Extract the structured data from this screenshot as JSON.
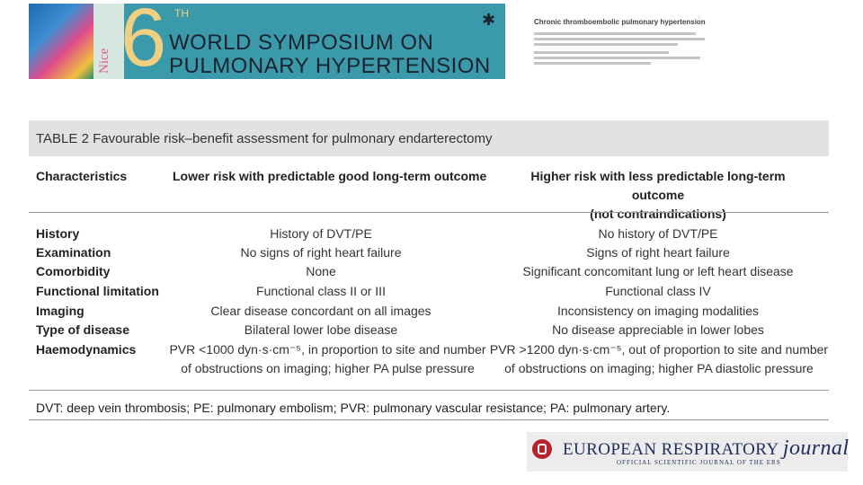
{
  "banner": {
    "edition": "6",
    "edition_suffix": "TH",
    "line1": "WORLD SYMPOSIUM ON",
    "line2": "PULMONARY HYPERTENSION",
    "city": "Nice"
  },
  "paper": {
    "title": "Chronic thromboembolic pulmonary hypertension"
  },
  "table": {
    "caption": "TABLE 2 Favourable risk–benefit assessment for pulmonary endarterectomy",
    "headers": {
      "characteristics": "Characteristics",
      "lower": "Lower risk with predictable good long-term outcome",
      "higher_line1": "Higher risk with less predictable long-term outcome",
      "higher_line2": "(not contraindications)"
    },
    "rows": [
      {
        "label": "History",
        "lower": "History of DVT/PE",
        "higher": "No history of DVT/PE"
      },
      {
        "label": "Examination",
        "lower": "No signs of right heart failure",
        "higher": "Signs of right heart failure"
      },
      {
        "label": "Comorbidity",
        "lower": "None",
        "higher": "Significant concomitant lung or left heart disease"
      },
      {
        "label": "Functional limitation",
        "lower": "Functional class II or III",
        "higher": "Functional class IV"
      },
      {
        "label": "Imaging",
        "lower": "Clear disease concordant on all images",
        "higher": "Inconsistency on imaging modalities"
      },
      {
        "label": "Type of disease",
        "lower": "Bilateral lower lobe disease",
        "higher": "No disease appreciable in lower lobes"
      },
      {
        "label": "Haemodynamics",
        "lower_line1": "PVR <1000 dyn·s·cm⁻⁵, in proportion to site and number",
        "lower_line2": "of obstructions on imaging; higher PA pulse pressure",
        "higher_line1": "PVR >1200 dyn·s·cm⁻⁵, out of proportion to site and number",
        "higher_line2": "of obstructions on imaging; higher PA diastolic pressure"
      }
    ],
    "footnote": "DVT: deep vein thrombosis; PE: pulmonary embolism; PVR: pulmonary vascular resistance; PA: pulmonary artery."
  },
  "journal": {
    "name": "EUROPEAN RESPIRATORY",
    "name_italic": "journal",
    "subtitle": "OFFICIAL SCIENTIFIC JOURNAL OF THE ERS"
  }
}
